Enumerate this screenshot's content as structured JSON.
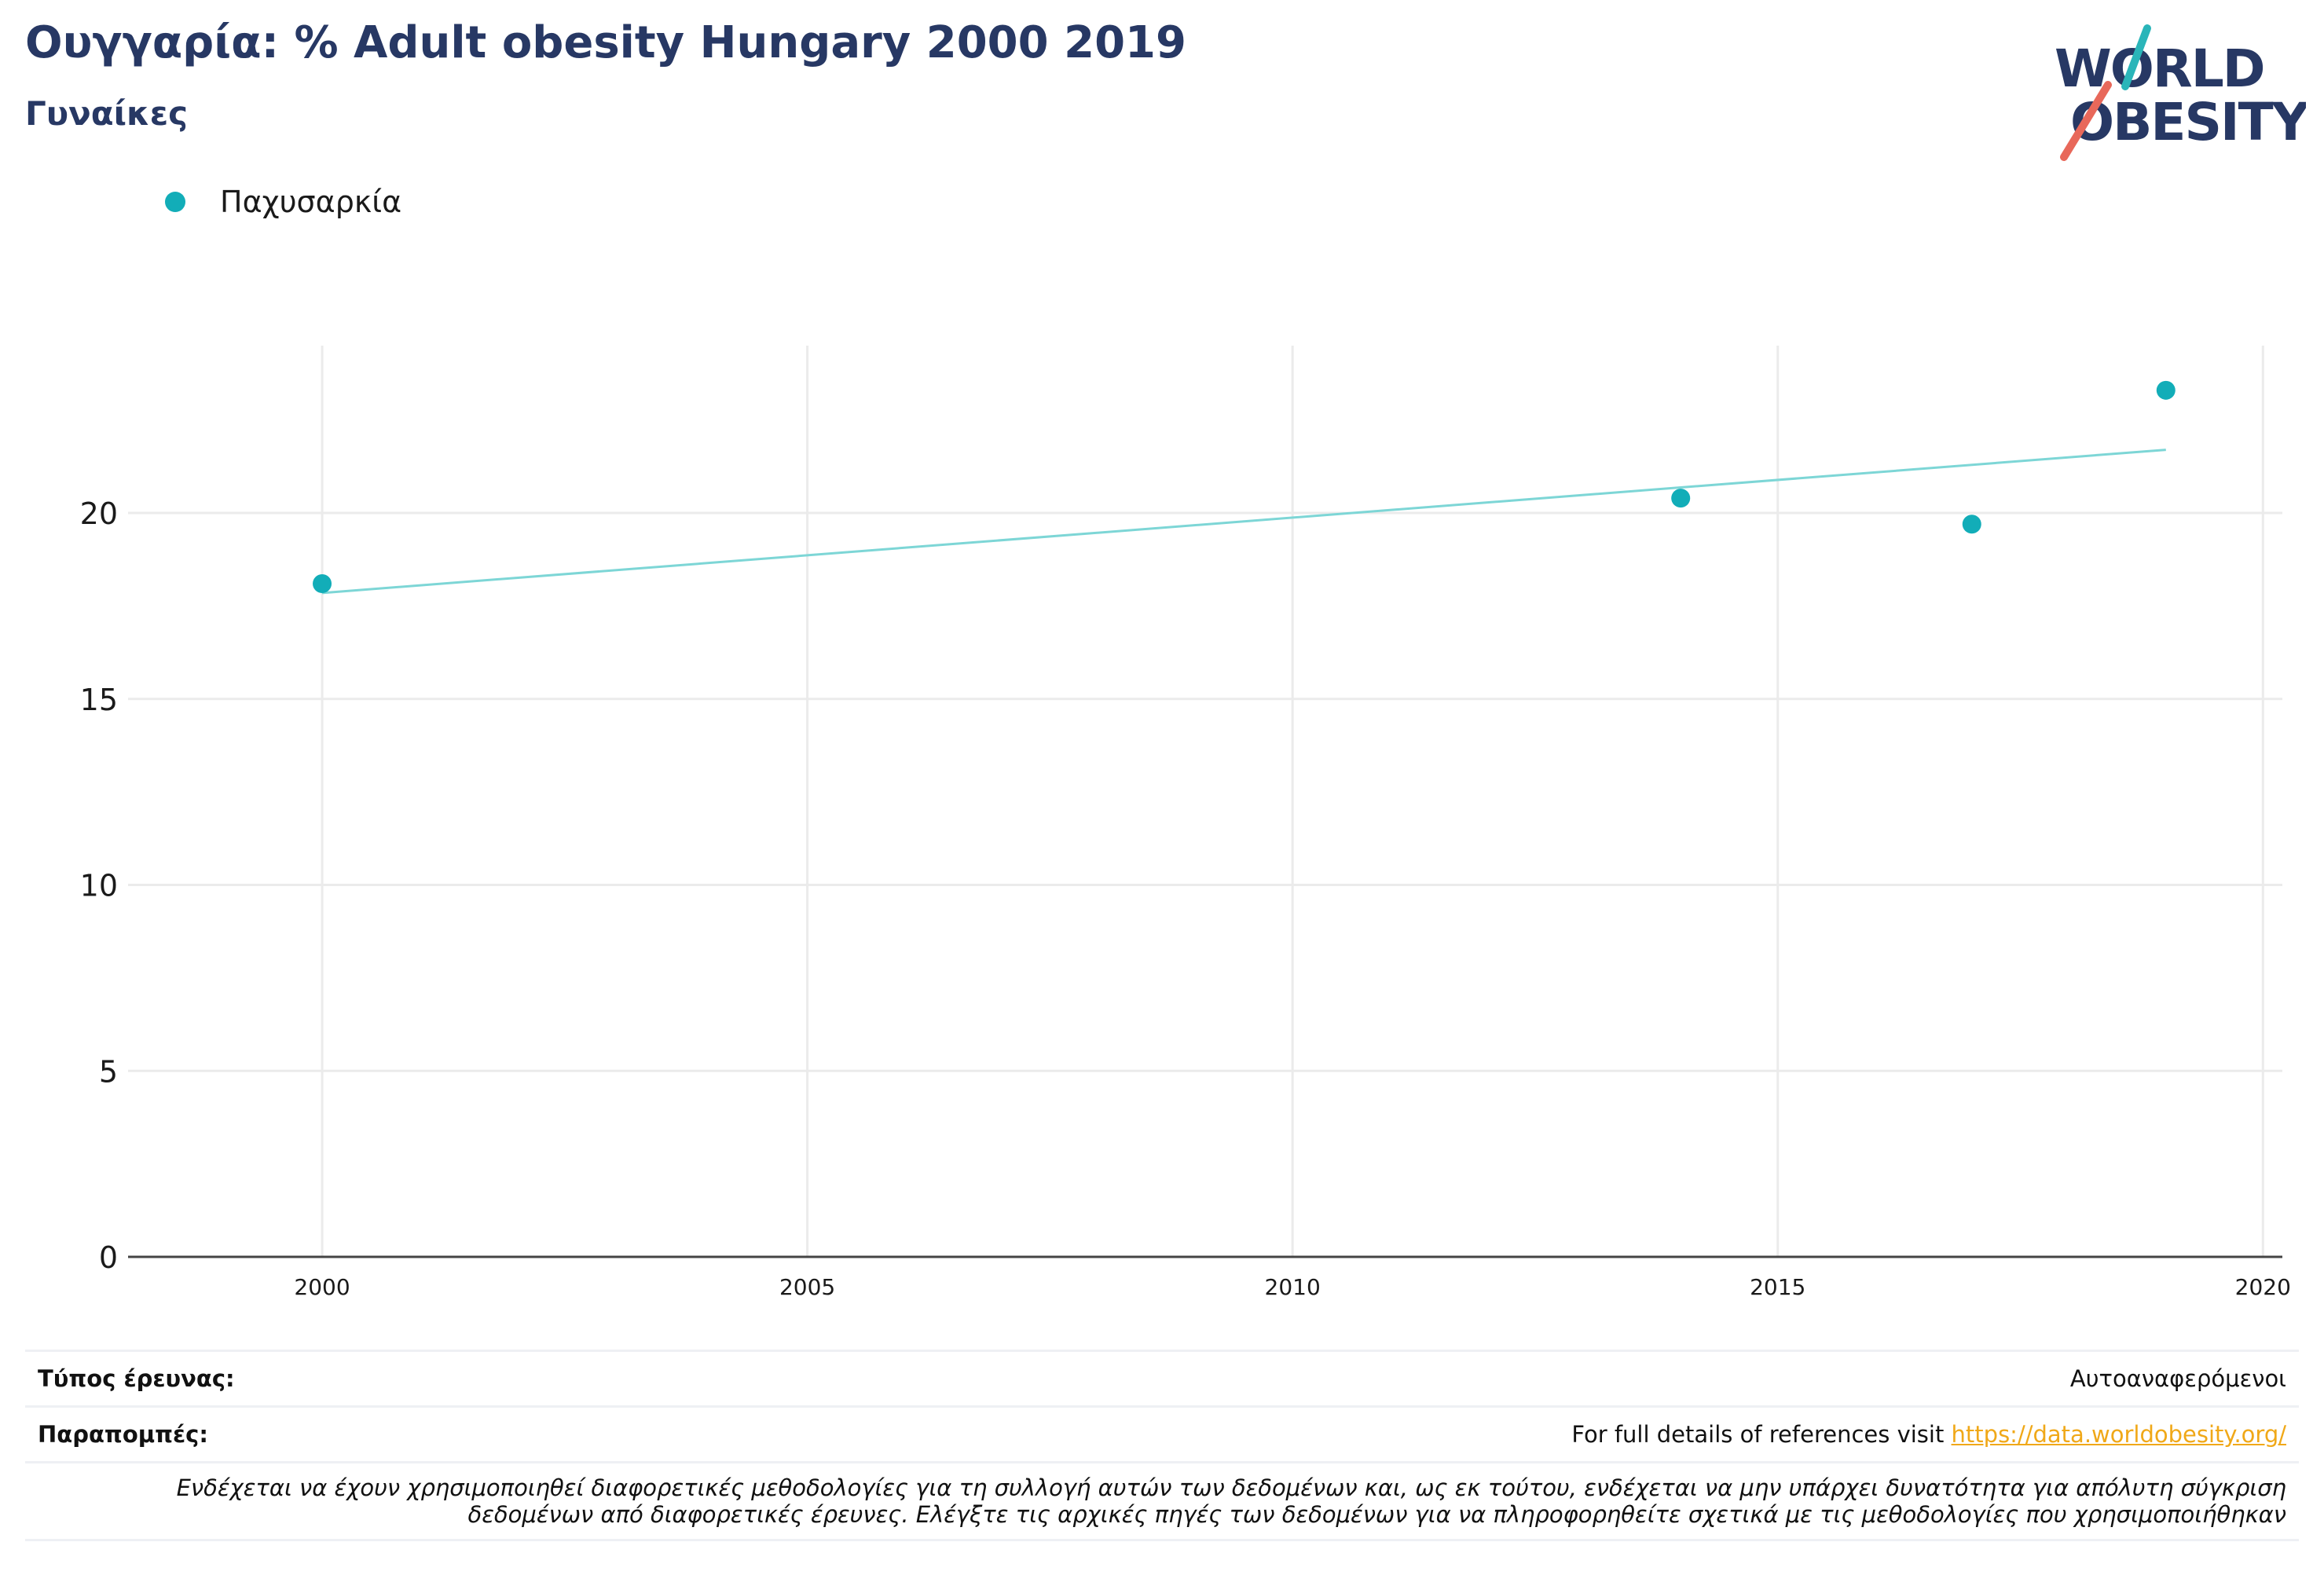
{
  "header": {
    "title": "Ουγγαρία: % Adult obesity Hungary 2000 2019",
    "subtitle": "Γυναίκες"
  },
  "logo": {
    "line1": "WORLD",
    "line2": "OBESITY",
    "colors": {
      "text": "#273864",
      "slash_teal": "#2ab5b9",
      "slash_red": "#e8685a"
    }
  },
  "legend": {
    "items": [
      {
        "label": "Παχυσαρκία",
        "color": "#12adb8"
      }
    ]
  },
  "chart_data": {
    "type": "scatter",
    "title": "Ουγγαρία: % Adult obesity Hungary 2000 2019",
    "subtitle": "Γυναίκες",
    "xlabel": "",
    "ylabel": "",
    "xlim": [
      1998,
      2020.2
    ],
    "ylim": [
      0,
      24.5
    ],
    "xticks": [
      2000,
      2005,
      2010,
      2015,
      2020
    ],
    "yticks": [
      0,
      5,
      10,
      15,
      20
    ],
    "grid": true,
    "legend_position": "top-left",
    "series": [
      {
        "name": "Παχυσαρκία",
        "color": "#12adb8",
        "points": [
          {
            "x": 2000,
            "y": 18.1
          },
          {
            "x": 2014,
            "y": 20.4
          },
          {
            "x": 2017,
            "y": 19.7
          },
          {
            "x": 2019,
            "y": 23.3
          }
        ]
      }
    ],
    "trendline": {
      "color": "#7dd6d6",
      "x": [
        2000,
        2019
      ],
      "y": [
        17.85,
        21.7
      ]
    }
  },
  "footer": {
    "survey_type_label": "Τύπος έρευνας:",
    "survey_type_value": "Αυτοαναφερόμενοι",
    "references_label": "Παραπομπές:",
    "references_text": "For full details of references visit",
    "references_link": "https://data.worldobesity.org/",
    "note_line1": "Ενδέχεται να έχουν χρησιμοποιηθεί διαφορετικές μεθοδολογίες για τη συλλογή αυτών των δεδομένων και, ως εκ τούτου, ενδέχεται να μην υπάρχει δυνατότητα για απόλυτη σύγκριση",
    "note_line2": "δεδομένων από διαφορετικές έρευνες. Ελέγξτε τις αρχικές πηγές των δεδομένων για να πληροφορηθείτε σχετικά με τις μεθοδολογίες που χρησιμοποιήθηκαν"
  }
}
